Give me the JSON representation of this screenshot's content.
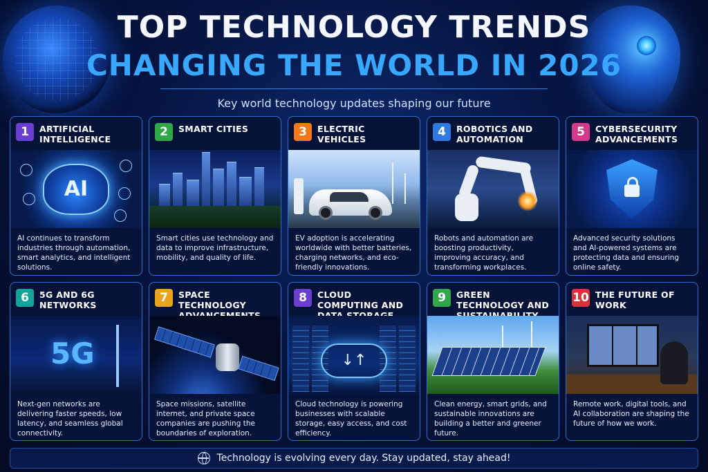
{
  "header": {
    "title_line1": "TOP TECHNOLOGY TRENDS",
    "title_line2": "CHANGING THE WORLD IN 2026",
    "subtitle": "Key world technology updates shaping our future"
  },
  "cards": [
    {
      "num": "1",
      "title": "ARTIFICIAL INTELLIGENCE",
      "art_text": "AI",
      "color": "#6a3fd0",
      "desc": "AI continues to transform industries through automation, smart analytics, and intelligent solutions."
    },
    {
      "num": "2",
      "title": "SMART CITIES",
      "color": "#2fa84a",
      "desc": "Smart cities use technology and data to improve infrastructure, mobility, and quality of life."
    },
    {
      "num": "3",
      "title": "ELECTRIC VEHICLES",
      "color": "#f07a1a",
      "desc": "EV adoption is accelerating worldwide with better batteries, charging networks, and eco-friendly innovations."
    },
    {
      "num": "4",
      "title": "ROBOTICS AND AUTOMATION",
      "color": "#2f7ae0",
      "desc": "Robots and automation are boosting productivity, improving accuracy, and transforming workplaces."
    },
    {
      "num": "5",
      "title": "CYBERSECURITY ADVANCEMENTS",
      "color": "#d23a8a",
      "desc": "Advanced security solutions and AI-powered systems are protecting data and ensuring online safety."
    },
    {
      "num": "6",
      "title": "5G AND 6G NETWORKS",
      "art_text": "5G",
      "color": "#14a39a",
      "desc": "Next-gen networks are delivering faster speeds, low latency, and seamless global connectivity."
    },
    {
      "num": "7",
      "title": "SPACE TECHNOLOGY ADVANCEMENTS",
      "color": "#e6a51a",
      "desc": "Space missions, satellite internet, and private space companies are pushing the boundaries of exploration."
    },
    {
      "num": "8",
      "title": "CLOUD COMPUTING AND DATA STORAGE",
      "art_text": "↓↑",
      "color": "#6a3fd0",
      "desc": "Cloud technology is powering businesses with scalable storage, easy access, and cost efficiency."
    },
    {
      "num": "9",
      "title": "GREEN TECHNOLOGY AND SUSTAINABILITY",
      "color": "#2fa84a",
      "desc": "Clean energy, smart grids, and sustainable innovations are building a better and greener future."
    },
    {
      "num": "10",
      "title": "THE FUTURE OF WORK",
      "color": "#d8323a",
      "desc": "Remote work, digital tools, and AI collaboration are shaping the future of how we work."
    }
  ],
  "footer": {
    "text": "Technology is evolving every day. Stay updated, stay ahead!",
    "icon": "globe-icon"
  }
}
